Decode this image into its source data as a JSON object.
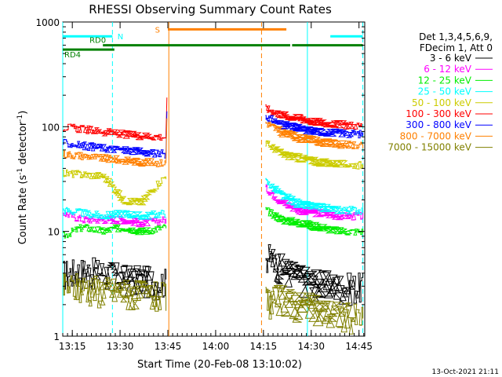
{
  "chart_data": {
    "type": "line",
    "title": "RHESSI Observing Summary Count Rates",
    "xlabel": "Start Time (20-Feb-08 13:10:02)",
    "ylabel_main": "Count Rate (s",
    "ylabel_sup1": "-1",
    "ylabel_mid": " detector",
    "ylabel_sup2": "-1",
    "ylabel_end": ")",
    "y_scale": "log",
    "ylim": [
      1,
      1000
    ],
    "xlim_minutes": [
      13.2,
      14.78
    ],
    "x_ticks": [
      {
        "label": "13:15",
        "value": 13.25
      },
      {
        "label": "13:30",
        "value": 13.5
      },
      {
        "label": "13:45",
        "value": 13.75
      },
      {
        "label": "14:00",
        "value": 14.0
      },
      {
        "label": "14:15",
        "value": 14.25
      },
      {
        "label": "14:30",
        "value": 14.5
      },
      {
        "label": "14:45",
        "value": 14.75
      }
    ],
    "y_ticks": [
      {
        "label": "1",
        "value": 1
      },
      {
        "label": "10",
        "value": 10
      },
      {
        "label": "100",
        "value": 100
      },
      {
        "label": "1000",
        "value": 1000
      }
    ],
    "legend": {
      "placement": "right",
      "header1": "Det 1,3,4,5,6,9,",
      "header2": "FDecim 1, Att 0"
    },
    "series": [
      {
        "name": "3 - 6 keV",
        "color": "#000000",
        "seg1": [
          4.0,
          4.2,
          4.1,
          3.6,
          3.5,
          3.3
        ],
        "seg2": [
          6.0,
          4.5,
          3.6,
          3.2,
          3.0,
          3.0
        ]
      },
      {
        "name": "6 - 12 keV",
        "color": "#ff00ff",
        "seg1": [
          15,
          13,
          13,
          13,
          12,
          13
        ],
        "seg2": [
          26,
          19,
          16,
          15,
          14,
          14
        ]
      },
      {
        "name": "12 - 25 keV",
        "color": "#00ee00",
        "seg1": [
          9,
          11,
          10,
          11,
          10,
          11
        ],
        "seg2": [
          16,
          13,
          12,
          11,
          10,
          10
        ]
      },
      {
        "name": "25 - 50 keV",
        "color": "#00ffff",
        "seg1": [
          16,
          15,
          14,
          15,
          14,
          15
        ],
        "seg2": [
          30,
          22,
          18,
          17,
          16,
          16
        ]
      },
      {
        "name": "50 - 100 keV",
        "color": "#cccc00",
        "seg1": [
          36,
          35,
          34,
          20,
          19,
          34
        ],
        "seg2": [
          70,
          55,
          50,
          46,
          44,
          43
        ]
      },
      {
        "name": "100 - 300 keV",
        "color": "#ff0000",
        "seg1": [
          100,
          95,
          90,
          85,
          82,
          80
        ],
        "seg2": [
          150,
          130,
          120,
          110,
          105,
          102
        ]
      },
      {
        "name": "300 - 800 keV",
        "color": "#0000ff",
        "seg1": [
          70,
          66,
          63,
          60,
          57,
          55
        ],
        "seg2": [
          125,
          105,
          95,
          90,
          87,
          85
        ]
      },
      {
        "name": "800 - 7000 keV",
        "color": "#ff8000",
        "seg1": [
          55,
          53,
          50,
          48,
          46,
          45
        ],
        "seg2": [
          110,
          88,
          78,
          72,
          68,
          65
        ]
      },
      {
        "name": "7000 - 15000 keV",
        "color": "#808000",
        "seg1": [
          3.0,
          3.0,
          2.8,
          2.7,
          2.5,
          2.4
        ],
        "seg2": [
          2.2,
          2.3,
          2.0,
          1.8,
          1.6,
          1.5
        ]
      }
    ],
    "segments_x": {
      "seg1": [
        13.2,
        13.3,
        13.4,
        13.5,
        13.6,
        13.74
      ],
      "seg2": [
        14.26,
        14.33,
        14.42,
        14.52,
        14.64,
        14.77
      ]
    },
    "flare_spike": {
      "x": 13.745,
      "values": {
        "100 - 300 keV": 190,
        "300 - 800 keV": 140,
        "800 - 7000 keV": 120
      }
    },
    "orbit_bars": [
      {
        "label": "N",
        "color": "#00ffff",
        "y": 730,
        "ranges": [
          [
            13.2,
            13.46
          ],
          [
            14.6,
            14.77
          ]
        ]
      },
      {
        "label": "RD0",
        "color": "#008000",
        "y": 600,
        "ranges": [
          [
            13.41,
            14.39
          ],
          [
            14.4,
            14.77
          ]
        ]
      },
      {
        "label": "RD4",
        "color": "#008000",
        "y": 545,
        "ranges": [
          [
            13.2,
            13.47
          ]
        ]
      },
      {
        "label": "S",
        "color": "#ff8000",
        "y": 850,
        "ranges": [
          [
            13.75,
            14.37
          ]
        ]
      }
    ],
    "vlines": [
      {
        "x": 13.2,
        "color": "#00ffff",
        "style": "solid"
      },
      {
        "x": 13.46,
        "color": "#00ffff",
        "style": "dashed"
      },
      {
        "x": 13.755,
        "color": "#ff8000",
        "style": "solid"
      },
      {
        "x": 14.24,
        "color": "#ff8000",
        "style": "dashed"
      },
      {
        "x": 14.48,
        "color": "#00ffff",
        "style": "solid"
      },
      {
        "x": 14.77,
        "color": "#00ffff",
        "style": "dashed"
      }
    ]
  },
  "footer": {
    "timestamp": "13-Oct-2021 21:11"
  }
}
